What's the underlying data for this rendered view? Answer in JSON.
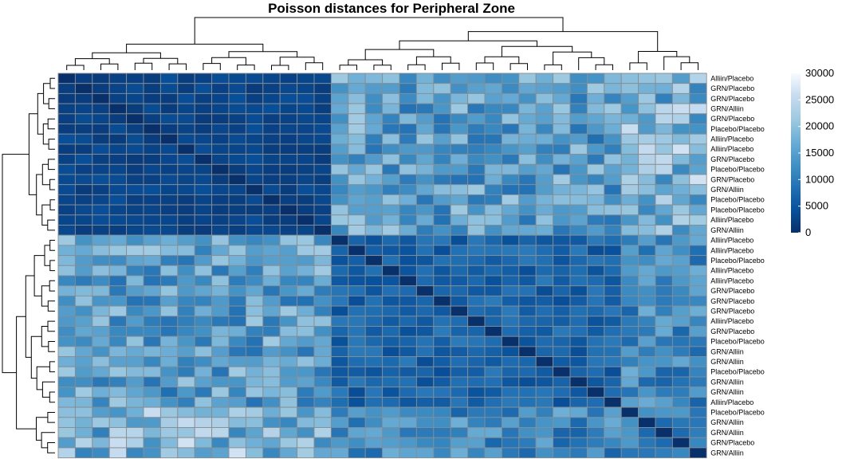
{
  "chart_data": {
    "type": "heatmap",
    "title": "Poisson distances for Peripheral Zone",
    "row_labels": [
      "Alliin/Placebo",
      "GRN/Placebo",
      "GRN/Placebo",
      "GRN/Alliin",
      "GRN/Placebo",
      "Placebo/Placebo",
      "Alliin/Placebo",
      "Alliin/Placebo",
      "GRN/Placebo",
      "Placebo/Placebo",
      "GRN/Placebo",
      "GRN/Alliin",
      "Placebo/Placebo",
      "Placebo/Placebo",
      "Alliin/Placebo",
      "GRN/Alliin",
      "Alliin/Placebo",
      "Alliin/Placebo",
      "Placebo/Placebo",
      "Alliin/Placebo",
      "Alliin/Placebo",
      "GRN/Placebo",
      "GRN/Placebo",
      "GRN/Placebo",
      "Alliin/Placebo",
      "GRN/Placebo",
      "Placebo/Placebo",
      "GRN/Alliin",
      "GRN/Alliin",
      "Placebo/Placebo",
      "GRN/Alliin",
      "GRN/Alliin",
      "Alliin/Placebo",
      "Placebo/Placebo",
      "GRN/Alliin",
      "GRN/Alliin",
      "GRN/Placebo",
      "GRN/Alliin"
    ],
    "groups": [
      16,
      17,
      5
    ],
    "color_scale": {
      "min": 0,
      "max": 30000,
      "ticks": [
        0,
        5000,
        10000,
        15000,
        20000,
        25000,
        30000
      ],
      "colors": [
        "#08306b",
        "#08519c",
        "#2171b5",
        "#4292c6",
        "#6baed6",
        "#9ecae1",
        "#c6dbef",
        "#f7fbff"
      ]
    },
    "legend_position": "right",
    "approx_block_values": {
      "A_A": 2800,
      "A_B": 15000,
      "A_C": 18500,
      "B_B": 6800,
      "B_C": 12000,
      "C_C": 10000
    },
    "diagonal": 0
  }
}
